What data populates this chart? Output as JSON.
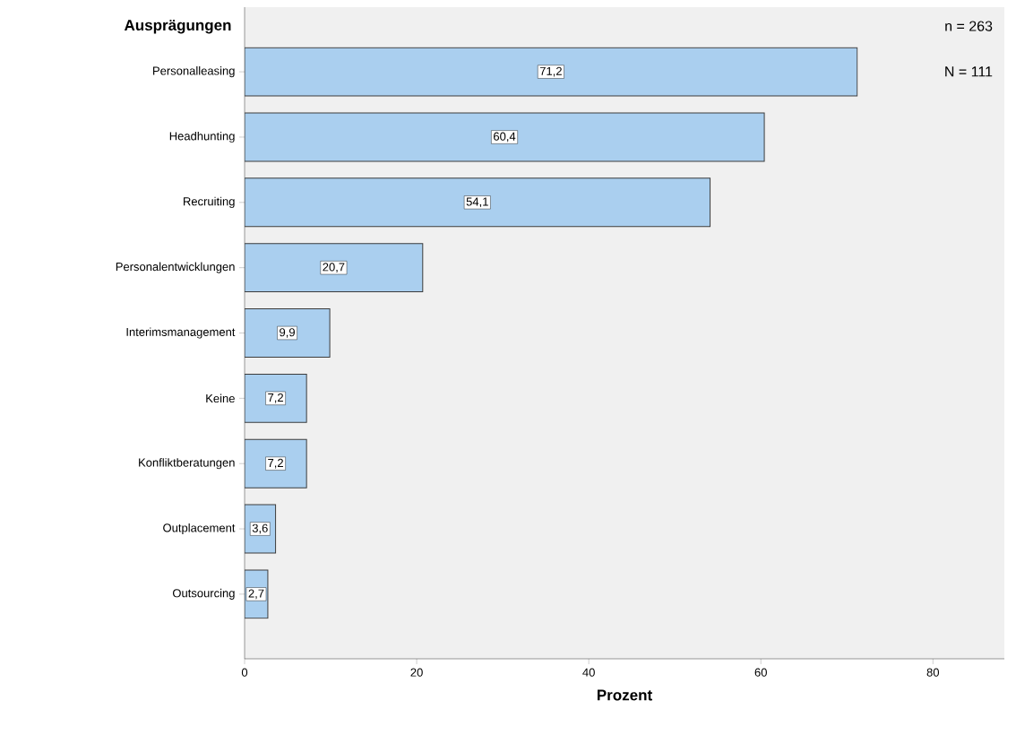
{
  "chart_data": {
    "type": "bar",
    "orientation": "horizontal",
    "ylabel": "Ausprägungen",
    "xlabel": "Prozent",
    "categories": [
      "Personalleasing",
      "Headhunting",
      "Recruiting",
      "Personalentwicklungen",
      "Interimsmanagement",
      "Keine",
      "Konfliktberatungen",
      "Outplacement",
      "Outsourcing"
    ],
    "values": [
      71.2,
      60.4,
      54.1,
      20.7,
      9.9,
      7.2,
      7.2,
      3.6,
      2.7
    ],
    "value_labels": [
      "71,2",
      "60,4",
      "54,1",
      "20,7",
      "9,9",
      "7,2",
      "7,2",
      "3,6",
      "2,7"
    ],
    "color": "#aacfef",
    "xlim": [
      0,
      88.3
    ],
    "xticks": [
      0,
      20,
      40,
      60,
      80
    ],
    "annotations": [
      "n = 263",
      "N = 111"
    ]
  }
}
